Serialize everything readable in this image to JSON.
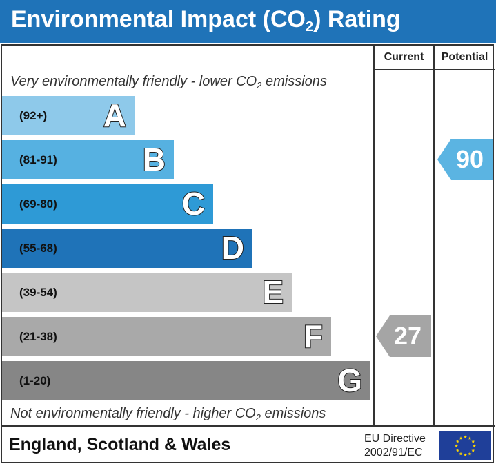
{
  "header": {
    "title_main": "Environmental Impact (CO",
    "title_sub": "2",
    "title_end": ") Rating"
  },
  "columns": {
    "current": "Current",
    "potential": "Potential"
  },
  "captions": {
    "top_main": "Very environmentally friendly - lower CO",
    "top_sub": "2",
    "top_end": " emissions",
    "bottom_main": "Not environmentally friendly - higher CO",
    "bottom_sub": "2",
    "bottom_end": " emissions"
  },
  "chart_data": {
    "type": "bar",
    "title": "Environmental Impact (CO2) Rating",
    "categories": [
      "A",
      "B",
      "C",
      "D",
      "E",
      "F",
      "G"
    ],
    "bands": [
      {
        "letter": "A",
        "range": "(92+)",
        "color": "#8ec9ea"
      },
      {
        "letter": "B",
        "range": "(81-91)",
        "color": "#56b1e1"
      },
      {
        "letter": "C",
        "range": "(69-80)",
        "color": "#2e9ad6"
      },
      {
        "letter": "D",
        "range": "(55-68)",
        "color": "#1f73b8"
      },
      {
        "letter": "E",
        "range": "(39-54)",
        "color": "#c5c5c5"
      },
      {
        "letter": "F",
        "range": "(21-38)",
        "color": "#a9a9a9"
      },
      {
        "letter": "G",
        "range": "(1-20)",
        "color": "#868686"
      }
    ],
    "current": {
      "value": 27,
      "band": "F",
      "color": "#a5a5a5"
    },
    "potential": {
      "value": 90,
      "band": "B",
      "color": "#5bb4e2"
    }
  },
  "footer": {
    "country": "England, Scotland & Wales",
    "directive_line1": "EU Directive",
    "directive_line2": "2002/91/EC"
  },
  "colors": {
    "header": "#1f73b8",
    "flag": "#1f3f99",
    "stars": "#ffd700"
  },
  "icons": {
    "flag": "eu-flag-icon"
  }
}
